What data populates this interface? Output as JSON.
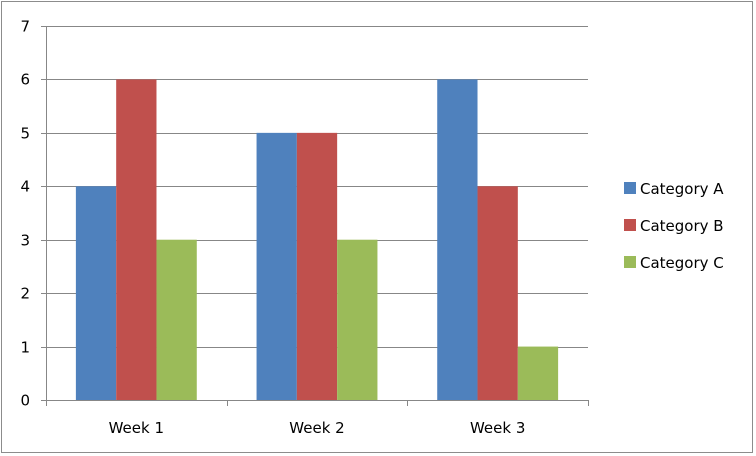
{
  "chart_data": {
    "type": "bar",
    "title": "",
    "xlabel": "",
    "ylabel": "",
    "categories": [
      "Week 1",
      "Week 2",
      "Week 3"
    ],
    "series": [
      {
        "name": "Category A",
        "values": [
          4,
          5,
          6
        ],
        "color": "#4f81bd"
      },
      {
        "name": "Category B",
        "values": [
          6,
          5,
          4
        ],
        "color": "#c0504d"
      },
      {
        "name": "Category C",
        "values": [
          3,
          3,
          1
        ],
        "color": "#9bbb59"
      }
    ],
    "ylim": [
      0,
      7
    ],
    "yticks": [
      "0",
      "1",
      "2",
      "3",
      "4",
      "5",
      "6",
      "7"
    ],
    "grid": true,
    "legend_position": "right"
  },
  "colors": {
    "gridline": "#878787",
    "axis": "#878787",
    "frame": "#8c8c8c"
  }
}
